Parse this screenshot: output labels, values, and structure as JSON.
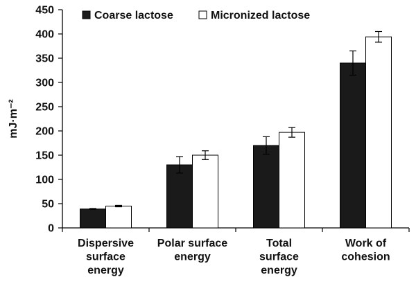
{
  "chart_data": {
    "type": "bar",
    "title": "",
    "xlabel": "",
    "ylabel": "mJ·m⁻²",
    "ylim": [
      0,
      450
    ],
    "yticks": [
      0,
      50,
      100,
      150,
      200,
      250,
      300,
      350,
      400,
      450
    ],
    "grid": false,
    "legend_position": "top-left",
    "categories": [
      [
        "Dispersive",
        "surface",
        "energy"
      ],
      [
        "Polar surface",
        "energy"
      ],
      [
        "Total",
        "surface",
        "energy"
      ],
      [
        "Work of",
        "cohesion"
      ]
    ],
    "series": [
      {
        "name": "Coarse lactose",
        "color": "#1a1a1a",
        "values": [
          39,
          130,
          170,
          340
        ],
        "errors": [
          1,
          17,
          18,
          25
        ]
      },
      {
        "name": "Micronized lactose",
        "color": "#ffffff",
        "values": [
          45,
          150,
          197,
          394
        ],
        "errors": [
          1.5,
          9,
          10,
          11
        ]
      }
    ]
  }
}
